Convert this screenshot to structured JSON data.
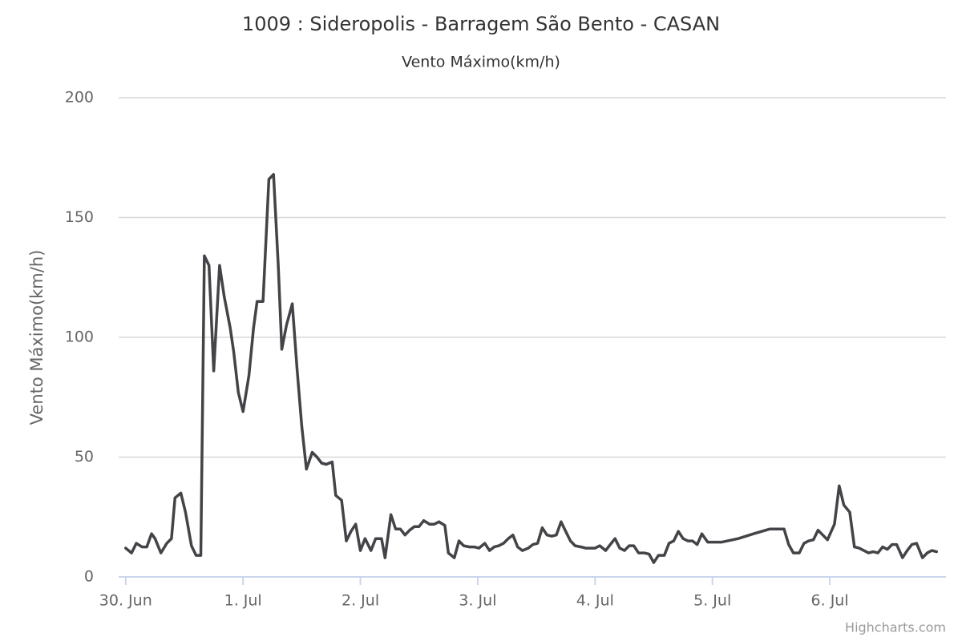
{
  "chart_data": {
    "type": "line",
    "title": "1009 : Sideropolis - Barragem São Bento - CASAN",
    "subtitle": "Vento Máximo(km/h)",
    "y_axis_label": "Vento Máximo(km/h)",
    "credits": "Highcharts.com",
    "x": [
      0.0,
      0.05,
      0.09,
      0.14,
      0.18,
      0.22,
      0.25,
      0.3,
      0.35,
      0.39,
      0.42,
      0.47,
      0.51,
      0.56,
      0.6,
      0.64,
      0.67,
      0.71,
      0.75,
      0.8,
      0.84,
      0.89,
      0.92,
      0.96,
      1.0,
      1.05,
      1.09,
      1.12,
      1.17,
      1.22,
      1.26,
      1.3,
      1.33,
      1.37,
      1.42,
      1.46,
      1.5,
      1.54,
      1.59,
      1.63,
      1.67,
      1.71,
      1.76,
      1.79,
      1.84,
      1.88,
      1.92,
      1.96,
      2.0,
      2.04,
      2.09,
      2.13,
      2.18,
      2.21,
      2.26,
      2.3,
      2.34,
      2.38,
      2.42,
      2.46,
      2.5,
      2.54,
      2.59,
      2.63,
      2.67,
      2.72,
      2.75,
      2.8,
      2.84,
      2.88,
      2.93,
      2.97,
      3.01,
      3.06,
      3.1,
      3.14,
      3.18,
      3.22,
      3.26,
      3.3,
      3.34,
      3.38,
      3.43,
      3.47,
      3.51,
      3.55,
      3.59,
      3.63,
      3.67,
      3.71,
      3.75,
      3.79,
      3.83,
      3.88,
      3.92,
      3.96,
      4.0,
      4.04,
      4.09,
      4.13,
      4.17,
      4.21,
      4.25,
      4.29,
      4.33,
      4.37,
      4.42,
      4.46,
      4.5,
      4.54,
      4.59,
      4.63,
      4.67,
      4.71,
      4.75,
      4.79,
      4.83,
      4.87,
      4.91,
      4.96,
      5.08,
      5.22,
      5.35,
      5.49,
      5.61,
      5.65,
      5.69,
      5.74,
      5.78,
      5.82,
      5.86,
      5.9,
      5.94,
      5.98,
      6.04,
      6.08,
      6.12,
      6.17,
      6.21,
      6.25,
      6.29,
      6.33,
      6.37,
      6.41,
      6.45,
      6.49,
      6.53,
      6.57,
      6.62,
      6.66,
      6.7,
      6.74,
      6.79,
      6.83,
      6.87,
      6.91
    ],
    "series": [
      {
        "color": "#434348",
        "values": [
          12,
          10,
          14,
          12.5,
          12.5,
          18,
          16,
          10,
          14,
          16,
          33,
          35,
          27,
          13,
          9,
          9,
          134,
          130,
          86,
          130,
          117,
          104,
          94,
          77,
          69,
          84,
          104,
          115,
          115,
          166,
          168,
          130,
          95,
          105,
          114,
          87,
          63,
          45,
          52,
          50,
          47.5,
          47,
          48,
          34,
          32,
          15,
          19,
          22,
          11,
          16,
          11,
          16,
          16,
          8,
          26,
          20,
          20,
          17.5,
          19.5,
          21,
          21,
          23.5,
          22,
          22,
          23,
          21.5,
          10,
          8,
          15,
          13,
          12.5,
          12.5,
          12,
          14,
          11,
          12.5,
          13,
          14,
          16,
          17.5,
          12.5,
          11,
          12,
          13.5,
          14,
          20.5,
          17.5,
          17,
          17.5,
          23,
          19,
          15,
          13,
          12.5,
          12,
          12,
          12,
          13,
          11,
          13.5,
          16,
          12,
          11,
          13,
          13,
          10,
          10,
          9.5,
          6,
          9,
          9,
          14,
          15,
          19,
          16,
          15,
          15,
          13.5,
          18,
          14.5,
          14.5,
          16,
          18,
          20,
          20,
          13.5,
          10,
          10,
          14,
          15,
          15.5,
          19.5,
          17.5,
          15.5,
          22,
          38,
          30,
          27,
          12.5,
          12,
          11,
          10,
          10.5,
          10,
          12.5,
          11.5,
          13.5,
          13.5,
          8,
          11,
          13.5,
          14,
          8,
          10,
          11,
          10.5
        ]
      }
    ],
    "xlim": [
      -0.06,
      6.99
    ],
    "xticks": [
      {
        "value": 0,
        "label": "30. Jun"
      },
      {
        "value": 1,
        "label": "1. Jul"
      },
      {
        "value": 2,
        "label": "2. Jul"
      },
      {
        "value": 3,
        "label": "3. Jul"
      },
      {
        "value": 4,
        "label": "4. Jul"
      },
      {
        "value": 5,
        "label": "5. Jul"
      },
      {
        "value": 6,
        "label": "6. Jul"
      }
    ],
    "ylim": [
      0,
      200
    ],
    "yticks": [
      0,
      50,
      100,
      150,
      200
    ],
    "grid": true
  }
}
